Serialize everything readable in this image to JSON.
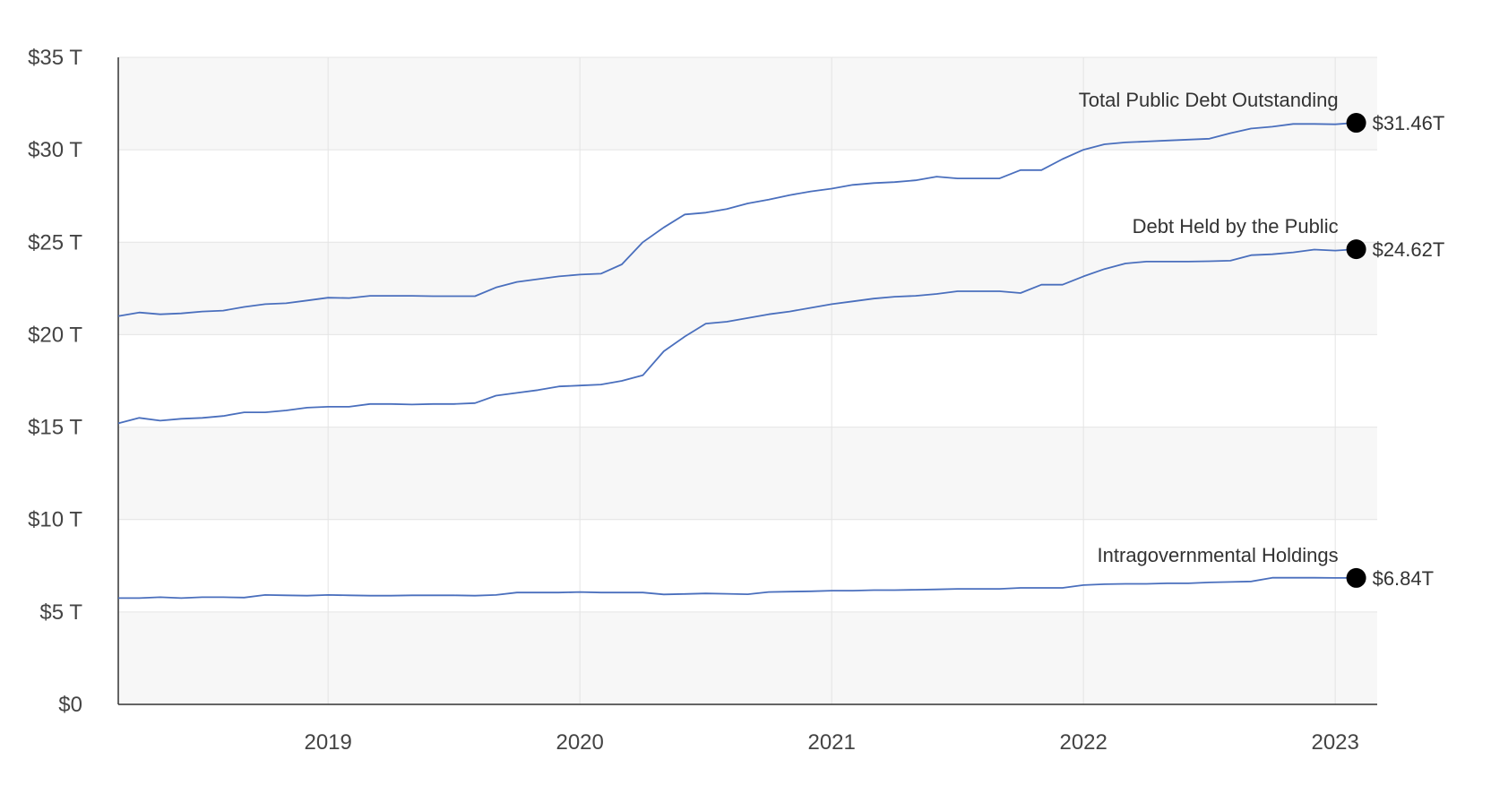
{
  "chart_data": {
    "type": "line",
    "title": "",
    "xlabel": "",
    "ylabel": "",
    "ylim": [
      0,
      35
    ],
    "xlim": [
      "2018-03",
      "2023-03"
    ],
    "grid": true,
    "y_ticks": [
      {
        "value": 0,
        "label": "$0"
      },
      {
        "value": 5,
        "label": "$5 T"
      },
      {
        "value": 10,
        "label": "$10 T"
      },
      {
        "value": 15,
        "label": "$15 T"
      },
      {
        "value": 20,
        "label": "$20 T"
      },
      {
        "value": 25,
        "label": "$25 T"
      },
      {
        "value": 30,
        "label": "$30 T"
      },
      {
        "value": 35,
        "label": "$35 T"
      }
    ],
    "x_ticks": [
      {
        "value": "2019-01",
        "label": "2019"
      },
      {
        "value": "2020-01",
        "label": "2020"
      },
      {
        "value": "2021-01",
        "label": "2021"
      },
      {
        "value": "2022-01",
        "label": "2022"
      },
      {
        "value": "2023-01",
        "label": "2023"
      }
    ],
    "x": [
      "2018-03",
      "2018-04",
      "2018-05",
      "2018-06",
      "2018-07",
      "2018-08",
      "2018-09",
      "2018-10",
      "2018-11",
      "2018-12",
      "2019-01",
      "2019-02",
      "2019-03",
      "2019-04",
      "2019-05",
      "2019-06",
      "2019-07",
      "2019-08",
      "2019-09",
      "2019-10",
      "2019-11",
      "2019-12",
      "2020-01",
      "2020-02",
      "2020-03",
      "2020-04",
      "2020-05",
      "2020-06",
      "2020-07",
      "2020-08",
      "2020-09",
      "2020-10",
      "2020-11",
      "2020-12",
      "2021-01",
      "2021-02",
      "2021-03",
      "2021-04",
      "2021-05",
      "2021-06",
      "2021-07",
      "2021-08",
      "2021-09",
      "2021-10",
      "2021-11",
      "2021-12",
      "2022-01",
      "2022-02",
      "2022-03",
      "2022-04",
      "2022-05",
      "2022-06",
      "2022-07",
      "2022-08",
      "2022-09",
      "2022-10",
      "2022-11",
      "2022-12",
      "2023-01",
      "2023-02"
    ],
    "series": [
      {
        "name": "Total Public Debt Outstanding",
        "end_label": "$31.46T",
        "values": [
          21.0,
          21.2,
          21.1,
          21.15,
          21.25,
          21.3,
          21.5,
          21.65,
          21.7,
          21.85,
          22.0,
          21.98,
          22.1,
          22.1,
          22.1,
          22.08,
          22.08,
          22.08,
          22.55,
          22.85,
          23.0,
          23.15,
          23.25,
          23.3,
          23.8,
          25.0,
          25.8,
          26.5,
          26.6,
          26.8,
          27.1,
          27.3,
          27.55,
          27.75,
          27.9,
          28.1,
          28.2,
          28.25,
          28.35,
          28.55,
          28.45,
          28.45,
          28.45,
          28.9,
          28.9,
          29.5,
          30.0,
          30.3,
          30.4,
          30.45,
          30.5,
          30.55,
          30.6,
          30.9,
          31.15,
          31.25,
          31.4,
          31.4,
          31.38,
          31.46
        ]
      },
      {
        "name": "Debt Held by the Public",
        "end_label": "$24.62T",
        "values": [
          15.2,
          15.5,
          15.35,
          15.45,
          15.5,
          15.6,
          15.8,
          15.8,
          15.9,
          16.05,
          16.1,
          16.1,
          16.25,
          16.25,
          16.22,
          16.25,
          16.25,
          16.3,
          16.7,
          16.85,
          17.0,
          17.2,
          17.25,
          17.3,
          17.5,
          17.8,
          19.1,
          19.9,
          20.6,
          20.7,
          20.9,
          21.1,
          21.25,
          21.45,
          21.65,
          21.8,
          21.95,
          22.05,
          22.1,
          22.2,
          22.35,
          22.35,
          22.35,
          22.25,
          22.7,
          22.7,
          23.15,
          23.55,
          23.85,
          23.95,
          23.95,
          23.95,
          23.97,
          24.0,
          24.3,
          24.35,
          24.45,
          24.6,
          24.55,
          24.62
        ]
      },
      {
        "name": "Intragovernmental Holdings",
        "end_label": "$6.84T",
        "values": [
          5.75,
          5.75,
          5.8,
          5.75,
          5.8,
          5.8,
          5.78,
          5.92,
          5.9,
          5.88,
          5.92,
          5.9,
          5.88,
          5.88,
          5.9,
          5.9,
          5.9,
          5.88,
          5.92,
          6.05,
          6.05,
          6.05,
          6.08,
          6.05,
          6.05,
          6.05,
          5.95,
          5.97,
          6.0,
          5.98,
          5.96,
          6.08,
          6.1,
          6.12,
          6.15,
          6.15,
          6.18,
          6.18,
          6.2,
          6.22,
          6.25,
          6.25,
          6.25,
          6.3,
          6.3,
          6.3,
          6.45,
          6.5,
          6.52,
          6.52,
          6.55,
          6.55,
          6.6,
          6.62,
          6.65,
          6.85,
          6.85,
          6.85,
          6.84,
          6.84
        ]
      }
    ],
    "colors": {
      "line": "#4a6fbd",
      "marker": "#000000",
      "band": "#f7f7f7",
      "grid": "#e4e4e4",
      "axis": "#333333"
    }
  }
}
